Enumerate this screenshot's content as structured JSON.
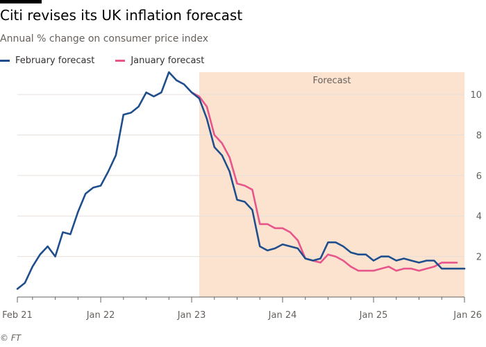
{
  "header": {
    "title": "Citi revises its UK inflation forecast",
    "subtitle": "Annual % change on consumer price index"
  },
  "legend": [
    {
      "label": "February forecast",
      "color": "#1f4e8c"
    },
    {
      "label": "January forecast",
      "color": "#e8558a"
    }
  ],
  "source": "© FT",
  "chart_data": {
    "type": "line",
    "title": "Citi revises its UK inflation forecast",
    "subtitle": "Annual % change on consumer price index",
    "x_ticks": [
      "Feb 21",
      "Jan 22",
      "Jan 23",
      "Jan 24",
      "Jan 25",
      "Jan 26"
    ],
    "y_ticks": [
      2,
      4,
      6,
      8,
      10
    ],
    "ylim": [
      0,
      11.1
    ],
    "x_start": "2021-02",
    "grid": "horizontal",
    "legend_position": "top-left",
    "shaded_region": {
      "label": "Forecast",
      "start": "2023-02",
      "end": "2026-01",
      "color": "#fbe3d0"
    },
    "series": [
      {
        "name": "February forecast",
        "color": "#1f4e8c",
        "start": "2021-02",
        "values": [
          0.4,
          0.7,
          1.5,
          2.1,
          2.5,
          2.0,
          3.2,
          3.1,
          4.2,
          5.1,
          5.4,
          5.5,
          6.2,
          7.0,
          9.0,
          9.1,
          9.4,
          10.1,
          9.9,
          10.1,
          11.1,
          10.7,
          10.5,
          10.1,
          9.8,
          8.8,
          7.4,
          7.0,
          6.2,
          4.8,
          4.7,
          4.3,
          2.5,
          2.3,
          2.4,
          2.6,
          2.5,
          2.4,
          1.9,
          1.8,
          1.9,
          2.7,
          2.7,
          2.5,
          2.2,
          2.1,
          2.1,
          1.8,
          2.0,
          2.0,
          1.8,
          1.9,
          1.8,
          1.7,
          1.8,
          1.8,
          1.4,
          1.4,
          1.4,
          1.4
        ]
      },
      {
        "name": "January forecast",
        "color": "#e8558a",
        "start": "2023-01",
        "values": [
          10.1,
          9.9,
          9.4,
          8.0,
          7.6,
          6.9,
          5.6,
          5.5,
          5.3,
          3.6,
          3.6,
          3.4,
          3.4,
          3.2,
          2.8,
          1.9,
          1.8,
          1.7,
          2.1,
          2.0,
          1.8,
          1.5,
          1.3,
          1.3,
          1.3,
          1.4,
          1.5,
          1.3,
          1.4,
          1.4,
          1.3,
          1.4,
          1.5,
          1.7,
          1.7,
          1.7
        ]
      }
    ]
  }
}
